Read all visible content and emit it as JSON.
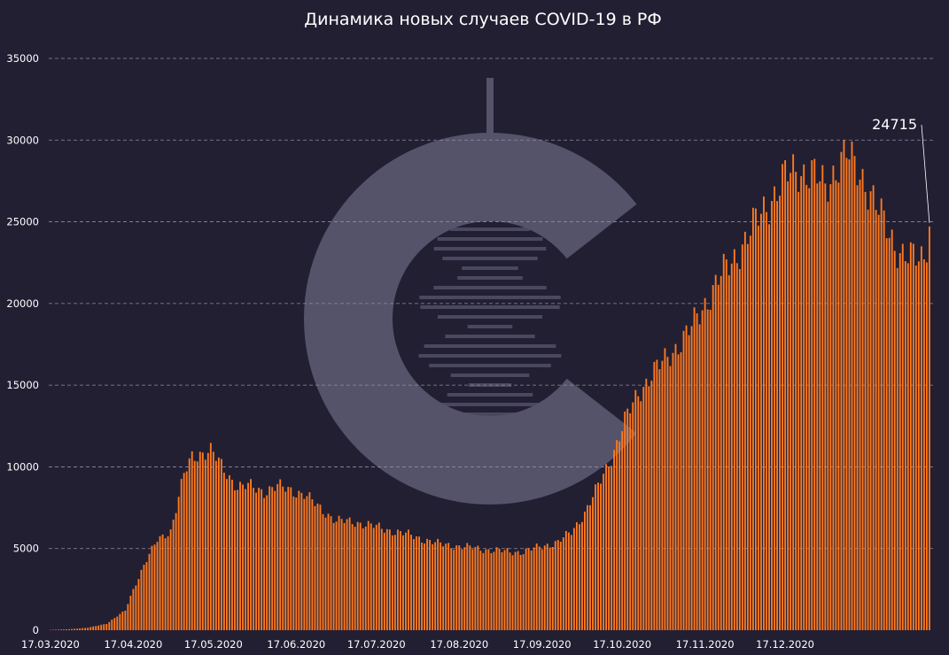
{
  "chart_data": {
    "type": "bar",
    "title": "Динамика новых случаев COVID-19 в РФ",
    "xlabel": "",
    "ylabel": "",
    "ylim": [
      0,
      35000
    ],
    "y_ticks": [
      0,
      5000,
      10000,
      15000,
      20000,
      25000,
      30000,
      35000
    ],
    "x_tick_labels": [
      "17.03.2020",
      "17.04.2020",
      "17.05.2020",
      "17.06.2020",
      "17.07.2020",
      "17.08.2020",
      "17.09.2020",
      "17.10.2020",
      "17.11.2020",
      "17.12.2020"
    ],
    "grid": "horizontal dashed",
    "legend": "none",
    "start_date": "17.03.2020",
    "x_step": "1 day",
    "last_value_label": "24715",
    "anchors": [
      [
        0,
        20
      ],
      [
        7,
        60
      ],
      [
        14,
        150
      ],
      [
        21,
        400
      ],
      [
        28,
        1200
      ],
      [
        31,
        2500
      ],
      [
        35,
        4000
      ],
      [
        40,
        5500
      ],
      [
        45,
        6100
      ],
      [
        50,
        9500
      ],
      [
        53,
        10600
      ],
      [
        57,
        10900
      ],
      [
        60,
        11000
      ],
      [
        65,
        9800
      ],
      [
        70,
        8800
      ],
      [
        75,
        8800
      ],
      [
        80,
        8500
      ],
      [
        85,
        8800
      ],
      [
        90,
        8600
      ],
      [
        95,
        8300
      ],
      [
        100,
        7600
      ],
      [
        107,
        6700
      ],
      [
        115,
        6600
      ],
      [
        125,
        6200
      ],
      [
        135,
        5800
      ],
      [
        145,
        5300
      ],
      [
        155,
        5100
      ],
      [
        165,
        4900
      ],
      [
        172,
        4800
      ],
      [
        177,
        4800
      ],
      [
        183,
        5100
      ],
      [
        190,
        5400
      ],
      [
        195,
        6000
      ],
      [
        200,
        7200
      ],
      [
        205,
        8800
      ],
      [
        210,
        10600
      ],
      [
        215,
        12800
      ],
      [
        220,
        14500
      ],
      [
        225,
        15700
      ],
      [
        230,
        16500
      ],
      [
        235,
        17500
      ],
      [
        240,
        18500
      ],
      [
        245,
        20000
      ],
      [
        250,
        21500
      ],
      [
        255,
        22500
      ],
      [
        260,
        23900
      ],
      [
        265,
        25200
      ],
      [
        270,
        26500
      ],
      [
        275,
        27700
      ],
      [
        280,
        28200
      ],
      [
        285,
        28000
      ],
      [
        290,
        27000
      ],
      [
        295,
        28700
      ],
      [
        298,
        29200
      ],
      [
        300,
        28500
      ],
      [
        305,
        27500
      ],
      [
        308,
        26500
      ],
      [
        312,
        24800
      ],
      [
        316,
        23600
      ],
      [
        320,
        23000
      ],
      [
        324,
        22600
      ],
      [
        327,
        22800
      ],
      [
        329,
        24715
      ]
    ],
    "colors": {
      "bar": "#ff7a1f",
      "background": "#221f33",
      "grid": "#8f8d9f",
      "text": "#ffffff",
      "watermark": "#55536a"
    }
  }
}
